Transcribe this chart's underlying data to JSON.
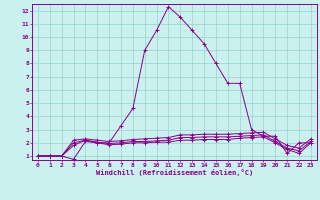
{
  "xlabel": "Windchill (Refroidissement éolien,°C)",
  "background_color": "#caf0f0",
  "grid_color": "#a0d8d0",
  "line_color": "#880088",
  "xlim": [
    -0.5,
    23.5
  ],
  "ylim": [
    0.7,
    12.5
  ],
  "xticks": [
    0,
    1,
    2,
    3,
    4,
    5,
    6,
    7,
    8,
    9,
    10,
    11,
    12,
    13,
    14,
    15,
    16,
    17,
    18,
    19,
    20,
    21,
    22,
    23
  ],
  "yticks": [
    1,
    2,
    3,
    4,
    5,
    6,
    7,
    8,
    9,
    10,
    11,
    12
  ],
  "series": [
    [
      1.0,
      1.0,
      1.0,
      0.75,
      2.1,
      2.0,
      2.0,
      3.3,
      4.6,
      9.0,
      10.5,
      12.3,
      11.5,
      10.5,
      9.5,
      8.0,
      6.5,
      6.5,
      3.0,
      2.5,
      2.5,
      1.2,
      2.0,
      2.0
    ],
    [
      1.0,
      1.0,
      1.0,
      2.2,
      2.3,
      2.2,
      2.1,
      2.15,
      2.25,
      2.3,
      2.35,
      2.4,
      2.6,
      2.6,
      2.65,
      2.65,
      2.65,
      2.7,
      2.75,
      2.8,
      2.3,
      1.8,
      1.6,
      2.3
    ],
    [
      1.0,
      1.0,
      1.0,
      2.0,
      2.2,
      2.05,
      1.95,
      2.0,
      2.1,
      2.1,
      2.15,
      2.2,
      2.4,
      2.4,
      2.45,
      2.45,
      2.45,
      2.5,
      2.55,
      2.6,
      2.1,
      1.6,
      1.4,
      2.1
    ],
    [
      1.0,
      1.0,
      1.0,
      1.8,
      2.2,
      2.0,
      1.85,
      1.9,
      2.0,
      2.0,
      2.05,
      2.05,
      2.2,
      2.2,
      2.25,
      2.25,
      2.25,
      2.35,
      2.4,
      2.45,
      2.0,
      1.5,
      1.2,
      2.0
    ]
  ]
}
